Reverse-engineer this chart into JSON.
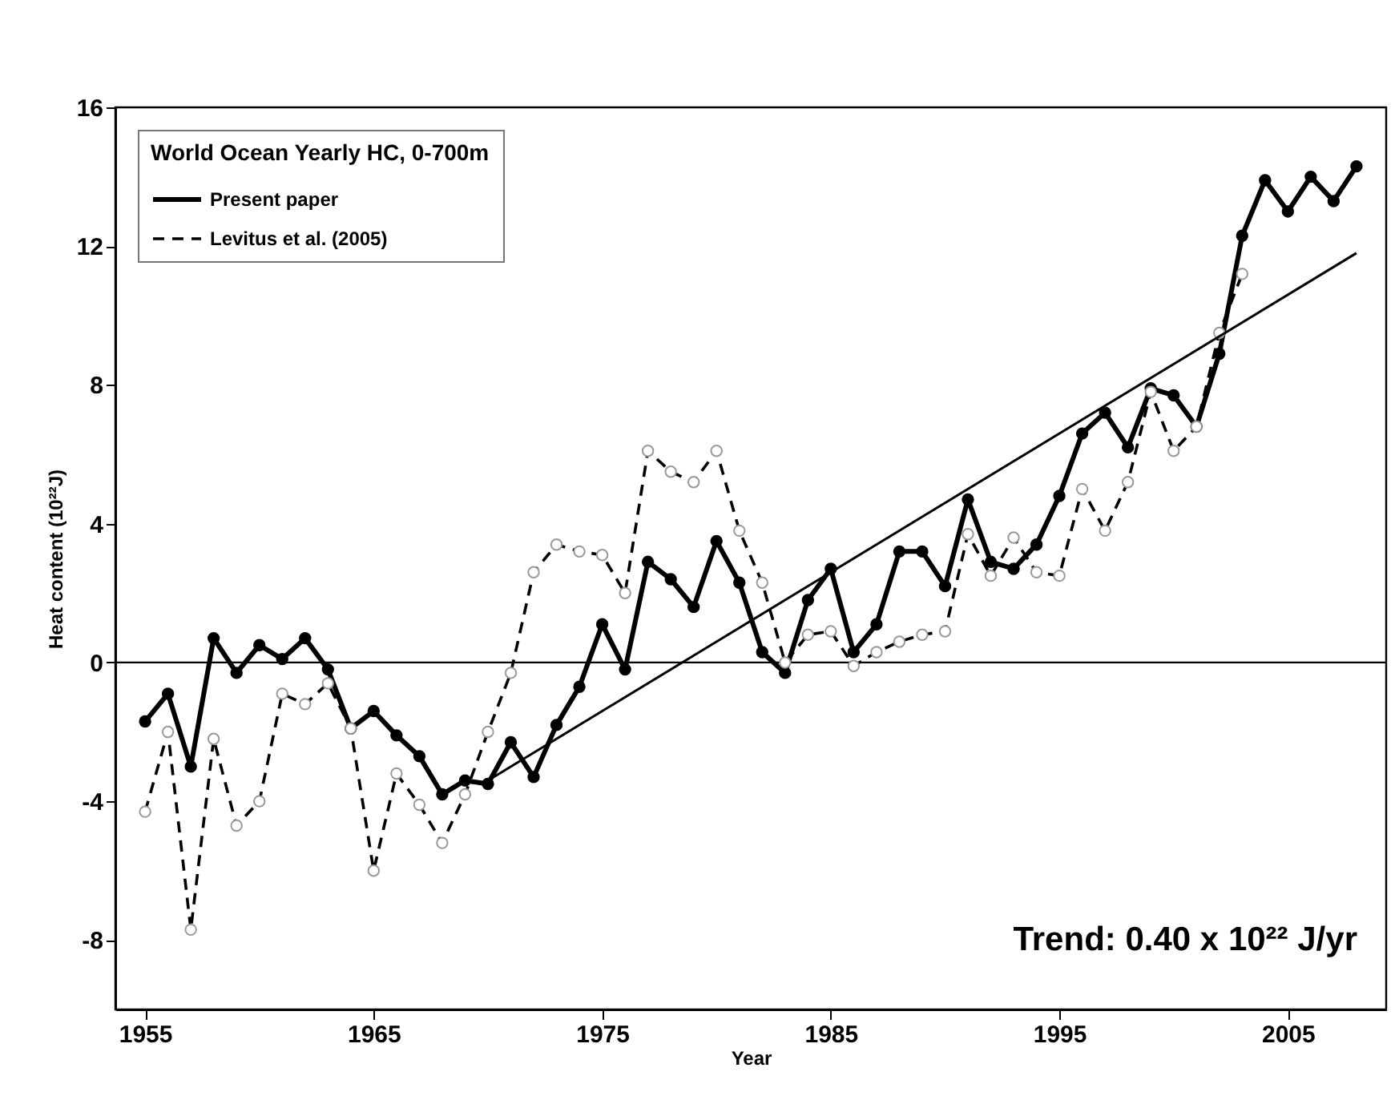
{
  "chart_data": {
    "type": "line",
    "xlabel": "Year",
    "ylabel": "Heat content (10²²J)",
    "legend_title": "World Ocean Yearly HC, 0-700m",
    "legend": "top left",
    "marker": "circle",
    "xlim": [
      1953.7,
      2009.3
    ],
    "xticks": [
      1955,
      1965,
      1975,
      1985,
      1995,
      2005
    ],
    "ylim": [
      -10,
      16
    ],
    "yticks": [
      -8,
      -4,
      0,
      4,
      8,
      12,
      16
    ],
    "ref_lines": [
      {
        "axis": "y",
        "value": 0,
        "color": "#000000"
      }
    ],
    "annotations": [
      "Trend: 0.40 x 10²² J/yr"
    ],
    "series": [
      {
        "name": "Present paper",
        "color": "#000000",
        "line_style": "solid",
        "x": [
          1955,
          1956,
          1957,
          1958,
          1959,
          1960,
          1961,
          1962,
          1963,
          1964,
          1965,
          1966,
          1967,
          1968,
          1969,
          1970,
          1971,
          1972,
          1973,
          1974,
          1975,
          1976,
          1977,
          1978,
          1979,
          1980,
          1981,
          1982,
          1983,
          1984,
          1985,
          1986,
          1987,
          1988,
          1989,
          1990,
          1991,
          1992,
          1993,
          1994,
          1995,
          1996,
          1997,
          1998,
          1999,
          2000,
          2001,
          2002,
          2003,
          2004,
          2005,
          2006,
          2007,
          2008
        ],
        "values": [
          -1.7,
          -0.9,
          -3.0,
          0.7,
          -0.3,
          0.5,
          0.1,
          0.7,
          -0.2,
          -1.9,
          -1.4,
          -2.1,
          -2.7,
          -3.8,
          -3.4,
          -3.5,
          -2.3,
          -3.3,
          -1.8,
          -0.7,
          1.1,
          -0.2,
          2.9,
          2.4,
          1.6,
          3.5,
          2.3,
          0.3,
          -0.3,
          1.8,
          2.7,
          0.3,
          1.1,
          3.2,
          3.2,
          2.2,
          4.7,
          2.9,
          2.7,
          3.4,
          4.8,
          6.6,
          7.2,
          6.2,
          7.9,
          7.7,
          6.8,
          8.9,
          12.3,
          13.9,
          13.0,
          14.0,
          13.3,
          14.3
        ]
      },
      {
        "name": "Levitus et al. (2005)",
        "color": "#000000",
        "line_style": "dashed",
        "x": [
          1955,
          1956,
          1957,
          1958,
          1959,
          1960,
          1961,
          1962,
          1963,
          1964,
          1965,
          1966,
          1967,
          1968,
          1969,
          1970,
          1971,
          1972,
          1973,
          1974,
          1975,
          1976,
          1977,
          1978,
          1979,
          1980,
          1981,
          1982,
          1983,
          1984,
          1985,
          1986,
          1987,
          1988,
          1989,
          1990,
          1991,
          1992,
          1993,
          1994,
          1995,
          1996,
          1997,
          1998,
          1999,
          2000,
          2001,
          2002,
          2003
        ],
        "values": [
          -4.3,
          -2.0,
          -7.7,
          -2.2,
          -4.7,
          -4.0,
          -0.9,
          -1.2,
          -0.6,
          -1.9,
          -6.0,
          -3.2,
          -4.1,
          -5.2,
          -3.8,
          -2.0,
          -0.3,
          2.6,
          3.4,
          3.2,
          3.1,
          2.0,
          6.1,
          5.5,
          5.2,
          6.1,
          3.8,
          2.3,
          0.0,
          0.8,
          0.9,
          -0.1,
          0.3,
          0.6,
          0.8,
          0.9,
          3.7,
          2.5,
          3.6,
          2.6,
          2.5,
          5.0,
          3.8,
          5.2,
          7.8,
          6.1,
          6.8,
          9.5,
          11.2
        ]
      },
      {
        "type": "line",
        "color": "#000000",
        "line_style": "solid",
        "marker": "none",
        "x": [
          1970,
          2008
        ],
        "values": [
          -3.4,
          11.8
        ]
      }
    ]
  }
}
